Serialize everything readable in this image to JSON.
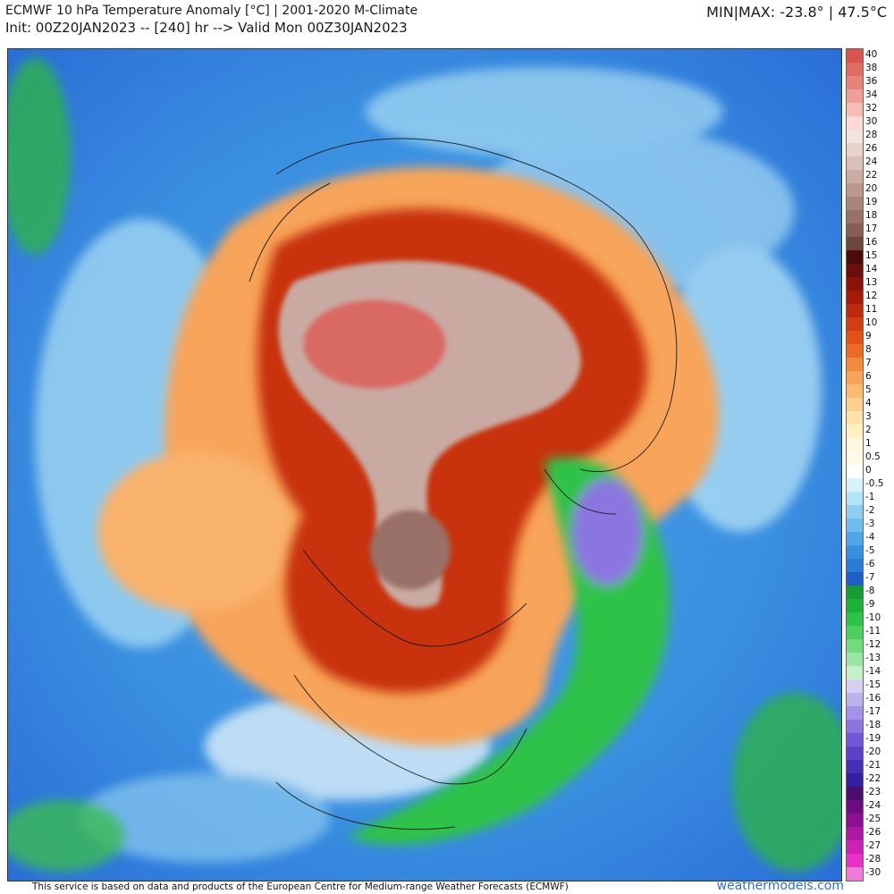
{
  "header": {
    "title_line1": "ECMWF 10 hPa Temperature Anomaly [°C] | 2001-2020 M-Climate",
    "title_line2": "Init: 00Z20JAN2023 -- [240] hr --> Valid Mon 00Z30JAN2023",
    "minmax": "MIN|MAX: -23.8° | 47.5°C"
  },
  "colorbar": {
    "labels": [
      "40",
      "38",
      "36",
      "34",
      "32",
      "30",
      "28",
      "26",
      "24",
      "22",
      "20",
      "19",
      "18",
      "17",
      "16",
      "15",
      "14",
      "13",
      "12",
      "11",
      "10",
      "9",
      "8",
      "7",
      "6",
      "5",
      "4",
      "3",
      "2",
      "1",
      "0.5",
      "0",
      "-0.5",
      "-1",
      "-2",
      "-3",
      "-4",
      "-5",
      "-6",
      "-7",
      "-8",
      "-9",
      "-10",
      "-11",
      "-12",
      "-13",
      "-14",
      "-15",
      "-16",
      "-17",
      "-18",
      "-19",
      "-20",
      "-21",
      "-22",
      "-23",
      "-24",
      "-25",
      "-26",
      "-27",
      "-28",
      "-30"
    ],
    "colors": [
      "#d9534f",
      "#e06a64",
      "#e8837c",
      "#f09e98",
      "#f7bcb6",
      "#fcd9d3",
      "#f3e4df",
      "#e6d2cb",
      "#d9bfb7",
      "#cbaca3",
      "#bb988f",
      "#ab857b",
      "#9a7168",
      "#875d55",
      "#6e4640",
      "#4a0d0a",
      "#6b0f0a",
      "#8a1409",
      "#a51b0b",
      "#bd2a0e",
      "#d23d12",
      "#e0521a",
      "#eb6a28",
      "#f38a3f",
      "#f8a45a",
      "#fbbb75",
      "#fdd08f",
      "#fee2a8",
      "#fff1c4",
      "#fff8dc",
      "#fffbe8",
      "#ffffff",
      "#d8f2fb",
      "#b3e3f7",
      "#8fd0f2",
      "#6fbdee",
      "#4fa6e8",
      "#3a8fe0",
      "#2a7ad8",
      "#1f5ec7",
      "#169c37",
      "#1fb03a",
      "#2fc24a",
      "#4ccf5e",
      "#72db7e",
      "#9ae6a2",
      "#c7f0c9",
      "#d6d0f2",
      "#bdb2ee",
      "#a393e8",
      "#8b76e0",
      "#7258d6",
      "#5b40c8",
      "#4530b5",
      "#33209e",
      "#4a0f6e",
      "#6b0d80",
      "#8c1192",
      "#ad18a5",
      "#cc22b6",
      "#e831c6",
      "#f07ad9"
    ]
  },
  "footer": {
    "note": "This service is based on data and products of the European Centre for Medium-range Weather Forecasts (ECMWF)",
    "brand": "weathermodels.com"
  }
}
